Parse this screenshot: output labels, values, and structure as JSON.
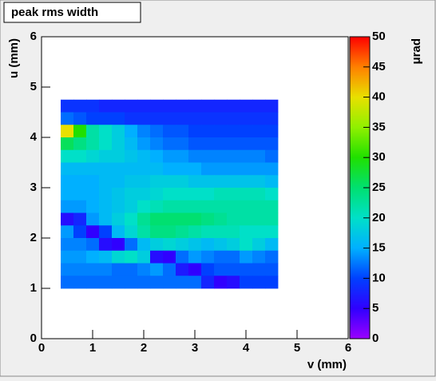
{
  "chart_data": {
    "type": "heatmap",
    "title": "peak rms width",
    "x_label": "v (mm)",
    "y_label": "u (mm)",
    "z_label": "μrad",
    "xlim": [
      0,
      6
    ],
    "xticks": [
      0,
      1,
      2,
      3,
      4,
      5,
      6
    ],
    "ylim": [
      0,
      6
    ],
    "yticks": [
      0,
      1,
      2,
      3,
      4,
      5,
      6
    ],
    "zlim": [
      0,
      50
    ],
    "zticks": [
      0,
      5,
      10,
      15,
      20,
      25,
      30,
      35,
      40,
      45,
      50
    ],
    "colorscale": [
      "#9a00ff",
      "#3000ff",
      "#0040ff",
      "#00b0ff",
      "#00e0c8",
      "#00e070",
      "#20e000",
      "#90f000",
      "#e8e000",
      "#ff8000",
      "#ff0000"
    ],
    "x": [
      0.5,
      0.75,
      1,
      1.25,
      1.5,
      1.75,
      2,
      2.25,
      2.5,
      2.75,
      3,
      3.25,
      3.5,
      3.75,
      4,
      4.25,
      4.5
    ],
    "y": [
      4.625,
      4.375,
      4.125,
      3.875,
      3.625,
      3.375,
      3.125,
      2.875,
      2.625,
      2.375,
      2.125,
      1.875,
      1.625,
      1.375,
      1.125
    ],
    "z": [
      [
        9,
        9,
        9,
        8,
        8,
        8,
        8,
        8,
        8,
        8,
        8,
        8,
        8,
        8,
        8,
        8,
        8
      ],
      [
        12,
        11,
        10,
        10,
        10,
        9,
        9,
        9,
        9,
        9,
        9,
        9,
        9,
        9,
        9,
        9,
        9
      ],
      [
        40,
        30,
        22,
        20,
        18,
        15,
        13,
        12,
        11,
        11,
        10,
        10,
        10,
        10,
        10,
        10,
        10
      ],
      [
        26,
        24,
        22,
        20,
        18,
        16,
        14,
        13,
        12,
        12,
        11,
        11,
        11,
        11,
        11,
        11,
        11
      ],
      [
        20,
        20,
        19,
        18,
        18,
        17,
        16,
        15,
        14,
        14,
        13,
        13,
        13,
        13,
        13,
        13,
        12
      ],
      [
        16,
        16,
        16,
        16,
        16,
        16,
        16,
        16,
        15,
        15,
        15,
        14,
        14,
        14,
        14,
        14,
        14
      ],
      [
        15,
        15,
        15,
        16,
        16,
        17,
        17,
        18,
        18,
        18,
        17,
        17,
        17,
        17,
        17,
        17,
        16
      ],
      [
        15,
        15,
        15,
        16,
        17,
        18,
        18,
        19,
        20,
        20,
        20,
        20,
        21,
        21,
        21,
        21,
        20
      ],
      [
        14,
        14,
        15,
        16,
        17,
        18,
        20,
        21,
        22,
        22,
        22,
        22,
        22,
        22,
        22,
        22,
        22
      ],
      [
        6,
        8,
        14,
        16,
        18,
        20,
        23,
        25,
        25,
        25,
        25,
        24,
        23,
        22,
        22,
        22,
        22
      ],
      [
        14,
        10,
        5,
        10,
        16,
        19,
        22,
        24,
        24,
        23,
        22,
        21,
        21,
        21,
        20,
        20,
        20
      ],
      [
        13,
        13,
        12,
        6,
        5,
        12,
        16,
        18,
        19,
        18,
        17,
        16,
        17,
        18,
        20,
        18,
        16
      ],
      [
        14,
        14,
        15,
        16,
        19,
        20,
        18,
        6,
        5,
        12,
        14,
        13,
        12,
        12,
        14,
        13,
        12
      ],
      [
        13,
        13,
        13,
        13,
        12,
        12,
        13,
        14,
        12,
        7,
        5,
        10,
        11,
        11,
        11,
        11,
        11
      ],
      [
        12,
        12,
        12,
        12,
        12,
        12,
        12,
        12,
        12,
        12,
        12,
        8,
        5,
        6,
        10,
        10,
        10
      ]
    ]
  }
}
